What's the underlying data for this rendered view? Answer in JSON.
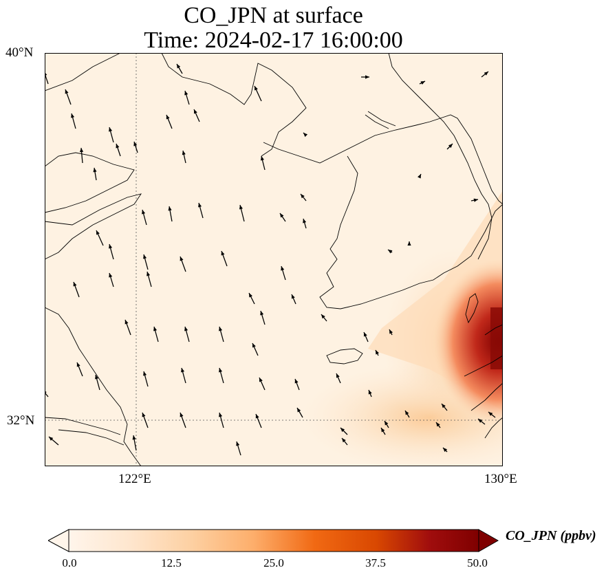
{
  "title": {
    "line1": "CO_JPN at surface",
    "line2": "Time: 2024-02-17 16:00:00"
  },
  "axes": {
    "lat_labels": [
      "40°N",
      "32°N"
    ],
    "lon_labels": [
      "122°E",
      "130°E"
    ],
    "lat_range": [
      31.0,
      40.0
    ],
    "lon_range": [
      120.0,
      130.0
    ],
    "gridlines": "dotted at 122°E and 32°N"
  },
  "colorbar": {
    "label": "CO_JPN (ppbv)",
    "ticks": [
      "0.0",
      "12.5",
      "25.0",
      "37.5",
      "50.0"
    ],
    "range": [
      0,
      50
    ],
    "extend": "both",
    "colormap": [
      "#fff5eb",
      "#fee6ce",
      "#fdd0a2",
      "#fdae6b",
      "#fd8d3c",
      "#f16913",
      "#d94801",
      "#a63603",
      "#7f2704"
    ]
  },
  "chart_data": {
    "type": "heatmap",
    "variable": "CO_JPN",
    "units": "ppbv",
    "level": "surface",
    "time": "2024-02-17 16:00:00",
    "x_range_lon": [
      120.0,
      130.0
    ],
    "y_range_lat": [
      31.0,
      40.0
    ],
    "value_range": [
      0,
      50
    ],
    "high_concentration_regions": [
      {
        "region": "near 129.5°E 34°N (Tsushima / northern Kyushu)",
        "max_ppbv": 50
      },
      {
        "region": "southeast of Jeju toward 127°E 31.5°N",
        "approx_ppbv": 12
      },
      {
        "region": "southern Korea coast plume",
        "approx_ppbv": 15
      }
    ],
    "background_ppbv": 1,
    "wind_vectors": "quiver arrows, predominantly from south-southeast toward north-northwest"
  }
}
